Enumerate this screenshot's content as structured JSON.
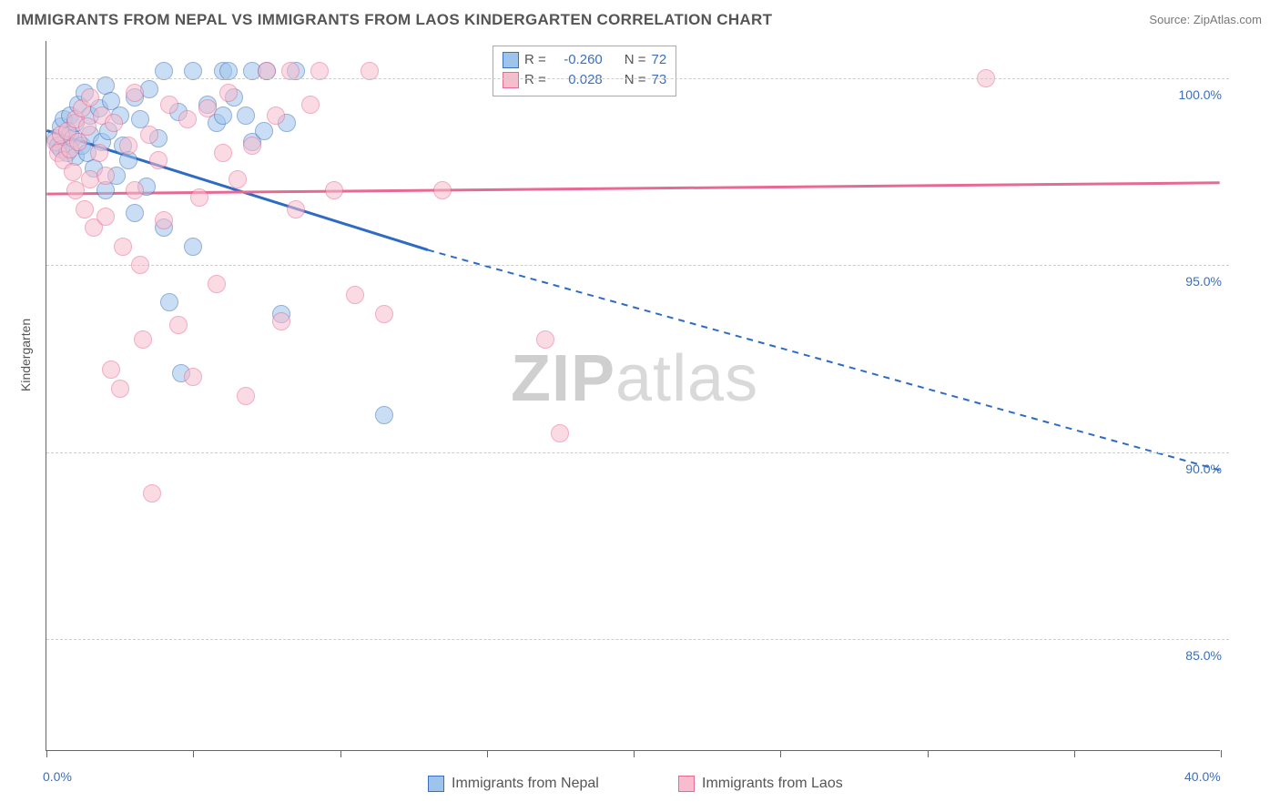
{
  "title": "IMMIGRANTS FROM NEPAL VS IMMIGRANTS FROM LAOS KINDERGARTEN CORRELATION CHART",
  "source_label": "Source:",
  "source_value": "ZipAtlas.com",
  "ylabel": "Kindergarten",
  "watermark_a": "ZIP",
  "watermark_b": "atlas",
  "chart": {
    "type": "scatter",
    "background_color": "#ffffff",
    "grid_color": "#cccccc",
    "axis_color": "#666666",
    "tick_label_color": "#3b6fbb",
    "xlim": [
      0,
      40
    ],
    "ylim": [
      82,
      101
    ],
    "x_ticks": [
      0,
      5,
      10,
      15,
      20,
      25,
      30,
      35,
      40
    ],
    "x_tick_labels": {
      "0": "0.0%",
      "40": "40.0%"
    },
    "y_gridlines": [
      85,
      90,
      95,
      100
    ],
    "y_tick_labels": {
      "85": "85.0%",
      "90": "90.0%",
      "95": "95.0%",
      "100": "100.0%"
    },
    "marker_radius": 10,
    "marker_opacity": 0.55,
    "series": [
      {
        "key": "nepal",
        "label": "Immigrants from Nepal",
        "fill": "#9ec4ec",
        "stroke": "#3b6fbb",
        "line_color": "#2d6bc4",
        "line_width": 3,
        "R": "-0.260",
        "N": "72",
        "trend": {
          "x1": 0,
          "y1": 98.6,
          "x2": 13,
          "y2": 95.4,
          "x2_ext": 40,
          "y2_ext": 89.5,
          "dash_after_x": 13
        },
        "points": [
          [
            0.3,
            98.4
          ],
          [
            0.4,
            98.2
          ],
          [
            0.5,
            98.7
          ],
          [
            0.5,
            98.1
          ],
          [
            0.6,
            98.9
          ],
          [
            0.7,
            98.0
          ],
          [
            0.8,
            98.5
          ],
          [
            0.8,
            99.0
          ],
          [
            0.9,
            98.4
          ],
          [
            1.0,
            98.8
          ],
          [
            1.0,
            97.9
          ],
          [
            1.1,
            99.3
          ],
          [
            1.2,
            98.2
          ],
          [
            1.3,
            99.6
          ],
          [
            1.4,
            98.0
          ],
          [
            1.5,
            99.0
          ],
          [
            1.5,
            98.5
          ],
          [
            1.6,
            97.6
          ],
          [
            1.8,
            99.2
          ],
          [
            1.9,
            98.3
          ],
          [
            2.0,
            99.8
          ],
          [
            2.0,
            97.0
          ],
          [
            2.1,
            98.6
          ],
          [
            2.2,
            99.4
          ],
          [
            2.4,
            97.4
          ],
          [
            2.5,
            99.0
          ],
          [
            2.6,
            98.2
          ],
          [
            2.8,
            97.8
          ],
          [
            3.0,
            99.5
          ],
          [
            3.0,
            96.4
          ],
          [
            3.2,
            98.9
          ],
          [
            3.4,
            97.1
          ],
          [
            3.5,
            99.7
          ],
          [
            3.8,
            98.4
          ],
          [
            4.0,
            100.2
          ],
          [
            4.0,
            96.0
          ],
          [
            4.2,
            94.0
          ],
          [
            4.5,
            99.1
          ],
          [
            4.6,
            92.1
          ],
          [
            5.0,
            100.2
          ],
          [
            5.0,
            95.5
          ],
          [
            5.5,
            99.3
          ],
          [
            5.8,
            98.8
          ],
          [
            6.0,
            100.2
          ],
          [
            6.0,
            99.0
          ],
          [
            6.2,
            100.2
          ],
          [
            6.4,
            99.5
          ],
          [
            6.8,
            99.0
          ],
          [
            7.0,
            100.2
          ],
          [
            7.0,
            98.3
          ],
          [
            7.4,
            98.6
          ],
          [
            7.5,
            100.2
          ],
          [
            8.0,
            93.7
          ],
          [
            8.2,
            98.8
          ],
          [
            8.5,
            100.2
          ],
          [
            11.5,
            91.0
          ]
        ]
      },
      {
        "key": "laos",
        "label": "Immigrants from Laos",
        "fill": "#f7bccd",
        "stroke": "#e76a93",
        "line_color": "#e76a93",
        "line_width": 3,
        "R": "0.028",
        "N": "73",
        "trend": {
          "x1": 0,
          "y1": 96.9,
          "x2": 40,
          "y2": 97.2
        },
        "points": [
          [
            0.3,
            98.3
          ],
          [
            0.4,
            98.0
          ],
          [
            0.5,
            98.5
          ],
          [
            0.6,
            97.8
          ],
          [
            0.7,
            98.6
          ],
          [
            0.8,
            98.1
          ],
          [
            0.9,
            97.5
          ],
          [
            1.0,
            98.9
          ],
          [
            1.0,
            97.0
          ],
          [
            1.1,
            98.3
          ],
          [
            1.2,
            99.2
          ],
          [
            1.3,
            96.5
          ],
          [
            1.4,
            98.7
          ],
          [
            1.5,
            97.3
          ],
          [
            1.5,
            99.5
          ],
          [
            1.6,
            96.0
          ],
          [
            1.8,
            98.0
          ],
          [
            1.9,
            99.0
          ],
          [
            2.0,
            97.4
          ],
          [
            2.0,
            96.3
          ],
          [
            2.2,
            92.2
          ],
          [
            2.3,
            98.8
          ],
          [
            2.5,
            91.7
          ],
          [
            2.6,
            95.5
          ],
          [
            2.8,
            98.2
          ],
          [
            3.0,
            97.0
          ],
          [
            3.0,
            99.6
          ],
          [
            3.2,
            95.0
          ],
          [
            3.3,
            93.0
          ],
          [
            3.5,
            98.5
          ],
          [
            3.6,
            88.9
          ],
          [
            3.8,
            97.8
          ],
          [
            4.0,
            96.2
          ],
          [
            4.2,
            99.3
          ],
          [
            4.5,
            93.4
          ],
          [
            4.8,
            98.9
          ],
          [
            5.0,
            92.0
          ],
          [
            5.2,
            96.8
          ],
          [
            5.5,
            99.2
          ],
          [
            5.8,
            94.5
          ],
          [
            6.0,
            98.0
          ],
          [
            6.2,
            99.6
          ],
          [
            6.5,
            97.3
          ],
          [
            6.8,
            91.5
          ],
          [
            7.0,
            98.2
          ],
          [
            7.5,
            100.2
          ],
          [
            7.8,
            99.0
          ],
          [
            8.0,
            93.5
          ],
          [
            8.3,
            100.2
          ],
          [
            8.5,
            96.5
          ],
          [
            9.0,
            99.3
          ],
          [
            9.3,
            100.2
          ],
          [
            9.8,
            97.0
          ],
          [
            10.5,
            94.2
          ],
          [
            11.0,
            100.2
          ],
          [
            11.5,
            93.7
          ],
          [
            13.5,
            97.0
          ],
          [
            17.0,
            93.0
          ],
          [
            17.5,
            90.5
          ],
          [
            32.0,
            100.0
          ]
        ]
      }
    ]
  },
  "stats_legend": {
    "r_label": "R =",
    "n_label": "N ="
  },
  "bottom_legend": {}
}
